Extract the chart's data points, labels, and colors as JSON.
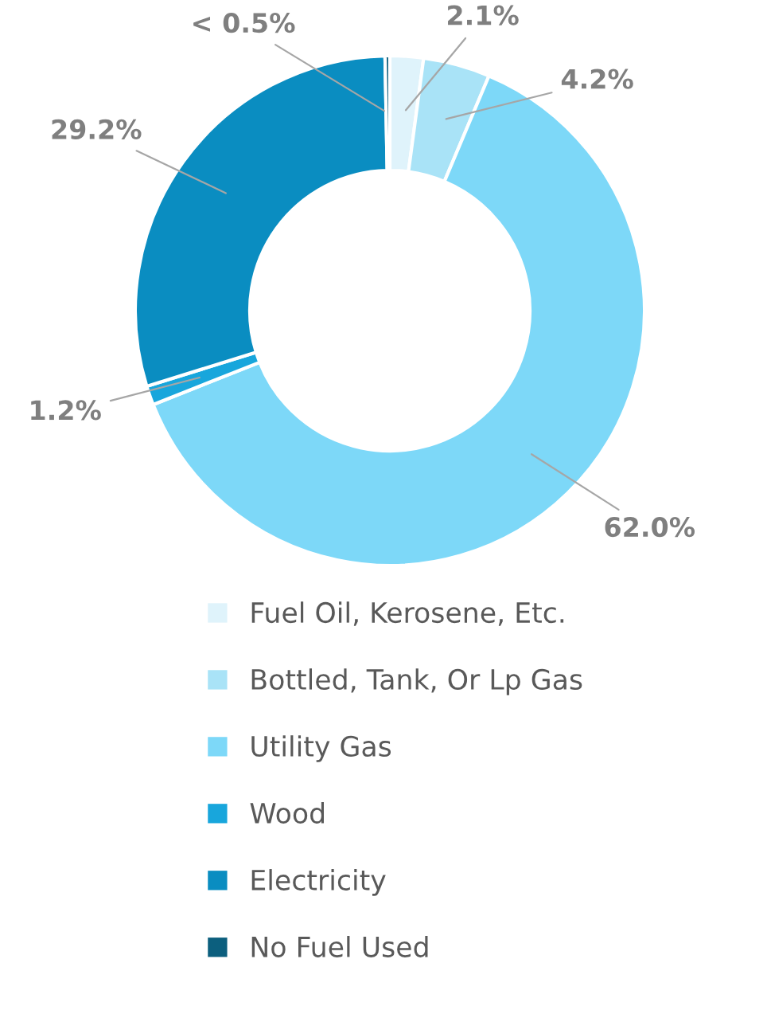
{
  "chart_data": {
    "type": "donut",
    "categories": [
      "Fuel Oil, Kerosene, Etc.",
      "Bottled, Tank, Or Lp Gas",
      "Utility Gas",
      "Wood",
      "Electricity",
      "No Fuel Used"
    ],
    "values": [
      2.1,
      4.2,
      62.0,
      1.2,
      29.2,
      0.3
    ],
    "value_labels": [
      "2.1%",
      "4.2%",
      "62.0%",
      "1.2%",
      "29.2%",
      "< 0.5%"
    ],
    "colors": [
      "#dff3fb",
      "#a9e3f7",
      "#7dd8f8",
      "#18a6dc",
      "#0a8dc1",
      "#0c5f7e"
    ],
    "legend": "bottom"
  }
}
